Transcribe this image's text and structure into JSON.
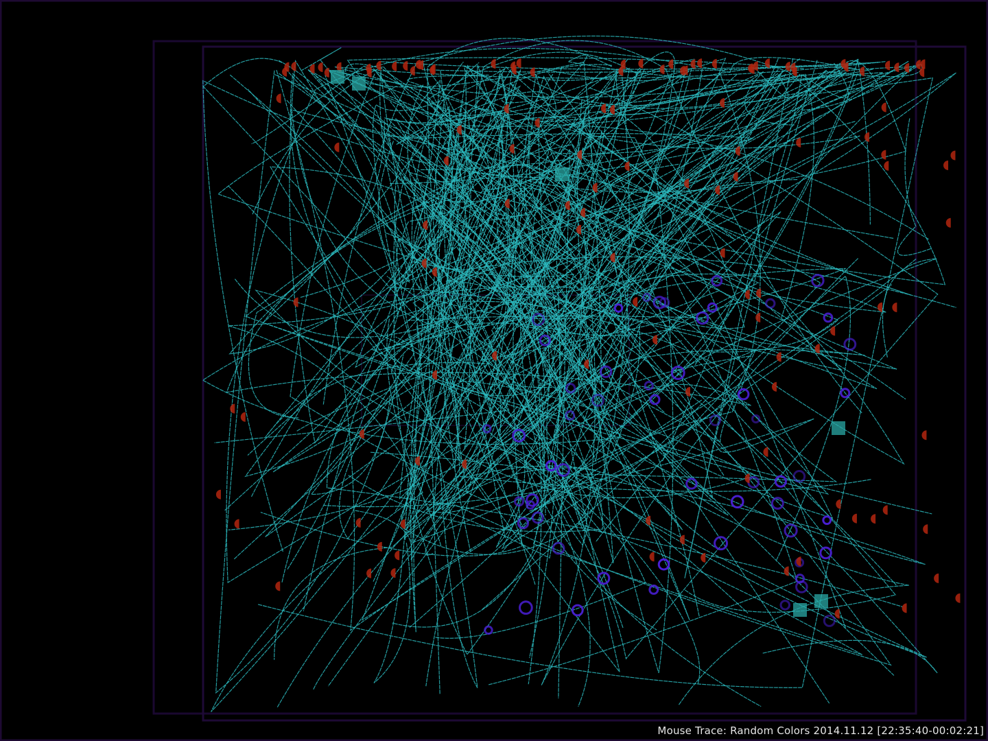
{
  "caption": {
    "title": "Mouse Trace: Random Colors 2014.11.12 [22:35:40-00:02:21]"
  },
  "colors": {
    "background": "#000000",
    "trace": "#2bb8bd",
    "click_marker": "#b3260f",
    "stop_marker": "#4a1fd6",
    "window_frame": "#1e0a33",
    "square_marker": "#2aa8a6"
  }
}
